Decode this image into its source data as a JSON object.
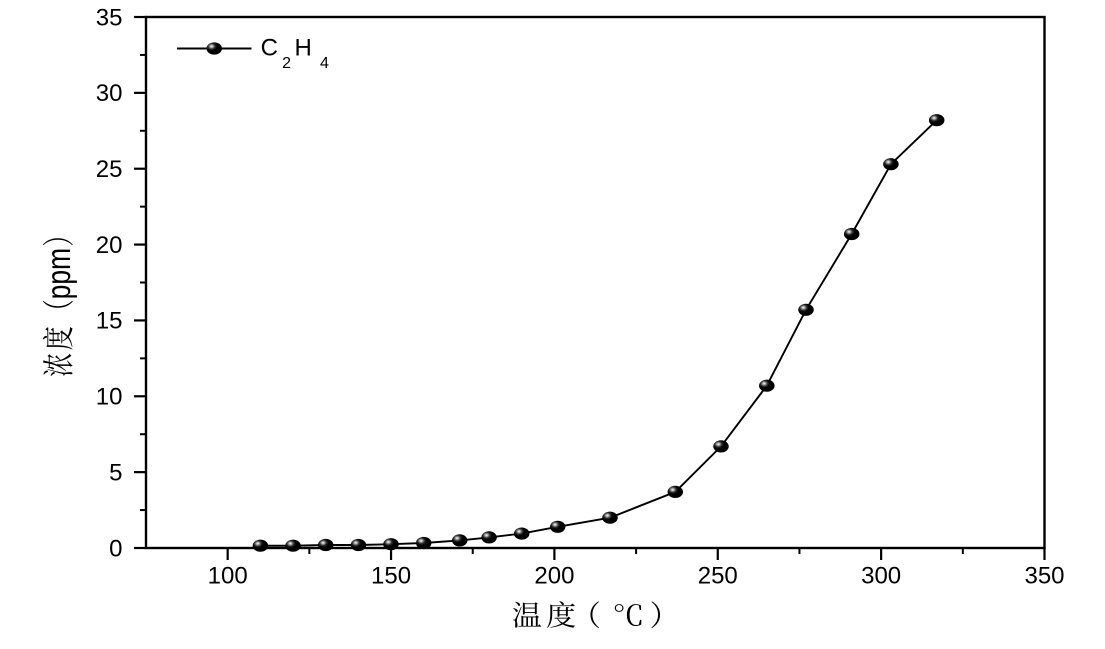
{
  "figure": {
    "background": "#ffffff",
    "ink_color": "#000000"
  },
  "chart_data": {
    "type": "line",
    "title": "",
    "xlabel": "温度（℃）",
    "ylabel": "浓度（ppm）",
    "xlim": [
      75,
      350
    ],
    "ylim": [
      0,
      35
    ],
    "xticks": [
      100,
      150,
      200,
      250,
      300,
      350
    ],
    "xminorticks": [
      125,
      175,
      225,
      275,
      325
    ],
    "yticks": [
      0,
      5,
      10,
      15,
      20,
      25,
      30,
      35
    ],
    "yminorticks": [
      2.5,
      7.5,
      12.5,
      17.5,
      22.5,
      27.5,
      32.5
    ],
    "grid": false,
    "legend_position": "top-left-inside",
    "series": [
      {
        "name": "C2H4",
        "label_parts": [
          {
            "text": "C",
            "sub": false
          },
          {
            "text": "2",
            "sub": true
          },
          {
            "text": "H",
            "sub": false
          },
          {
            "text": "4",
            "sub": true
          }
        ],
        "marker": "ball",
        "line_color": "#000000",
        "marker_color": "#000000",
        "points": [
          [
            110,
            0.15
          ],
          [
            120,
            0.15
          ],
          [
            130,
            0.2
          ],
          [
            140,
            0.2
          ],
          [
            150,
            0.25
          ],
          [
            160,
            0.33
          ],
          [
            171,
            0.5
          ],
          [
            180,
            0.7
          ],
          [
            190,
            0.95
          ],
          [
            201,
            1.4
          ],
          [
            217,
            2.0
          ],
          [
            237,
            3.7
          ],
          [
            251,
            6.7
          ],
          [
            265,
            10.7
          ],
          [
            277,
            15.7
          ],
          [
            291,
            20.7
          ],
          [
            303,
            25.3
          ],
          [
            317,
            28.2
          ]
        ]
      }
    ]
  }
}
